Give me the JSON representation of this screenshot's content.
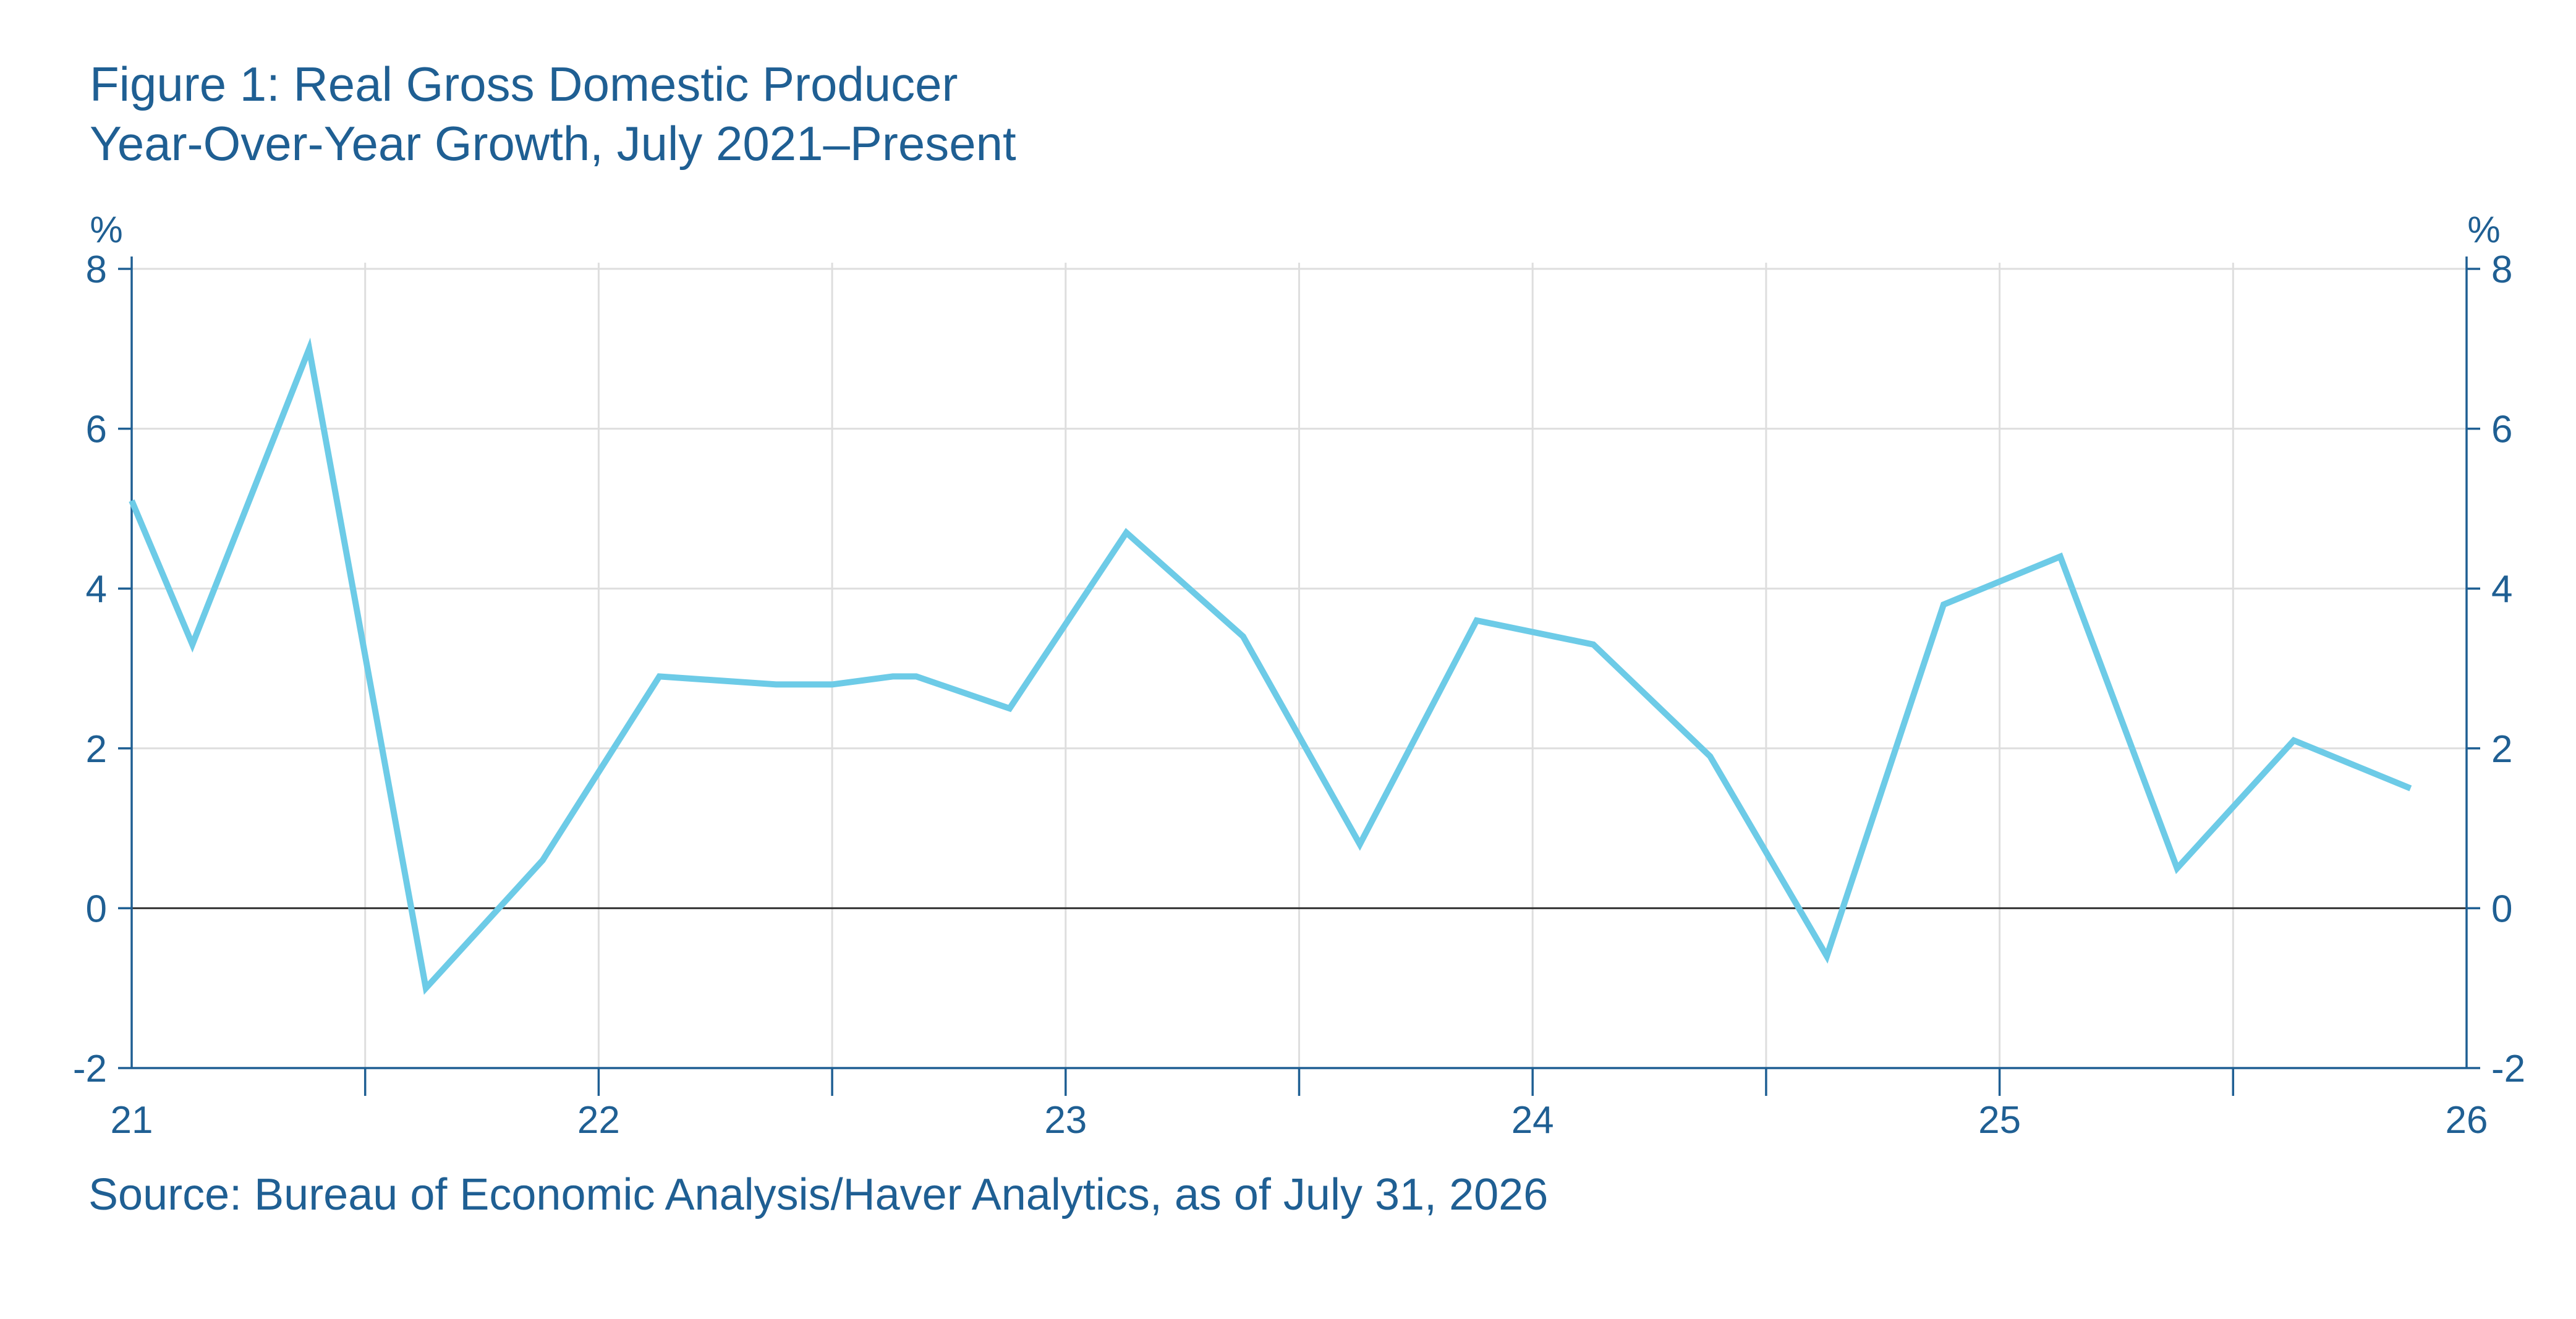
{
  "chart_data": {
    "type": "line",
    "title": "Figure 1: Real Gross Domestic Producer",
    "subtitle": "Year-Over-Year Growth, July 2021–Present",
    "source": "Source: Bureau of Economic Analysis/Haver Analytics, as of July 31, 2026",
    "y_unit_left": "%",
    "y_unit_right": "%",
    "xlabel": "",
    "ylabel": "",
    "xlim": [
      21,
      26
    ],
    "ylim": [
      -2,
      8
    ],
    "x_tick_labels": [
      "21",
      "22",
      "23",
      "24",
      "25",
      "26"
    ],
    "y_ticks": [
      8,
      6,
      4,
      2,
      0,
      -2
    ],
    "grid": true,
    "legend": "none",
    "colors": {
      "line": "#6dcbe7",
      "text": "#1f5f93",
      "grid": "#dedede",
      "zero": "#333333",
      "axis": "#1f5f93"
    },
    "series": [
      {
        "x": [
          21.0,
          21.13,
          21.38,
          21.63,
          21.88,
          22.13,
          22.38,
          22.5,
          22.63,
          22.68,
          22.88,
          23.13,
          23.38,
          23.63,
          23.88,
          24.13,
          24.38,
          24.63,
          24.88,
          25.13,
          25.38,
          25.63,
          25.88
        ],
        "values": [
          5.1,
          3.3,
          7.0,
          -1.0,
          0.6,
          2.9,
          2.8,
          2.8,
          2.9,
          2.9,
          2.5,
          4.7,
          3.4,
          0.8,
          3.6,
          3.3,
          1.9,
          -0.6,
          3.8,
          4.4,
          0.5,
          2.1,
          1.5
        ]
      }
    ]
  }
}
